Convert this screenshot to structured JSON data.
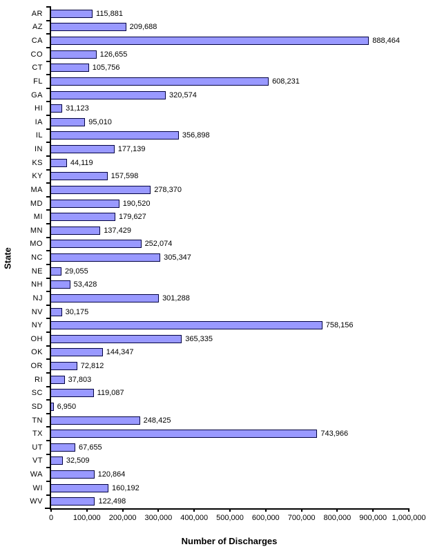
{
  "chart_data": {
    "type": "bar",
    "orientation": "horizontal",
    "title": "",
    "xlabel": "Number of Discharges",
    "ylabel": "State",
    "grid": false,
    "legend": false,
    "xlim": [
      0,
      1000000
    ],
    "x_ticks": [
      0,
      100000,
      200000,
      300000,
      400000,
      500000,
      600000,
      700000,
      800000,
      900000,
      1000000
    ],
    "x_tick_labels": [
      "0",
      "100,000",
      "200,000",
      "300,000",
      "400,000",
      "500,000",
      "600,000",
      "700,000",
      "800,000",
      "900,000",
      "1,000,000"
    ],
    "categories": [
      "AR",
      "AZ",
      "CA",
      "CO",
      "CT",
      "FL",
      "GA",
      "HI",
      "IA",
      "IL",
      "IN",
      "KS",
      "KY",
      "MA",
      "MD",
      "MI",
      "MN",
      "MO",
      "NC",
      "NE",
      "NH",
      "NJ",
      "NV",
      "NY",
      "OH",
      "OK",
      "OR",
      "RI",
      "SC",
      "SD",
      "TN",
      "TX",
      "UT",
      "VT",
      "WA",
      "WI",
      "WV"
    ],
    "values": [
      115881,
      209688,
      888464,
      126655,
      105756,
      608231,
      320574,
      31123,
      95010,
      356898,
      177139,
      44119,
      157598,
      278370,
      190520,
      179627,
      137429,
      252074,
      305347,
      29055,
      53428,
      301288,
      30175,
      758156,
      365335,
      144347,
      72812,
      37803,
      119087,
      6950,
      248425,
      743966,
      67655,
      32509,
      120864,
      160192,
      122498
    ],
    "value_labels": [
      "115,881",
      "209,688",
      "888,464",
      "126,655",
      "105,756",
      "608,231",
      "320,574",
      "31,123",
      "95,010",
      "356,898",
      "177,139",
      "44,119",
      "157,598",
      "278,370",
      "190,520",
      "179,627",
      "137,429",
      "252,074",
      "305,347",
      "29,055",
      "53,428",
      "301,288",
      "30,175",
      "758,156",
      "365,335",
      "144,347",
      "72,812",
      "37,803",
      "119,087",
      "6,950",
      "248,425",
      "743,966",
      "67,655",
      "32,509",
      "120,864",
      "160,192",
      "122,498"
    ],
    "bar_color": "#9999FF",
    "bar_border_color": "#000040",
    "axis_color": "#000000",
    "text_color": "#000000"
  }
}
